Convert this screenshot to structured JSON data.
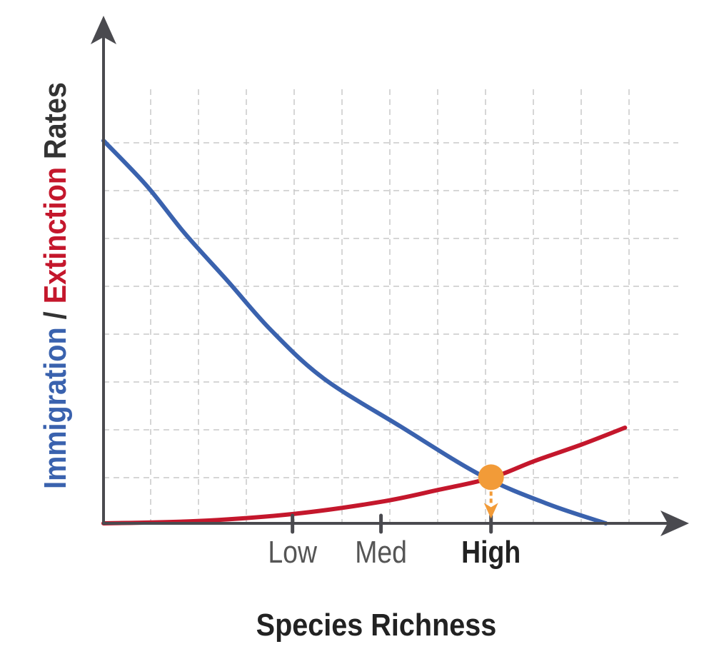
{
  "chart_data": {
    "type": "line",
    "title": "",
    "xlabel": "Species Richness",
    "ylabel_parts": [
      {
        "text": "Immigration",
        "color": "#3a62ae"
      },
      {
        "text": " / ",
        "color": "#333333"
      },
      {
        "text": "Extinction",
        "color": "#c4172c"
      },
      {
        "text": " Rates",
        "color": "#333333"
      }
    ],
    "xlim": [
      0,
      12
    ],
    "ylim": [
      0,
      10
    ],
    "grid": true,
    "x_ticks": [
      {
        "label": "Low",
        "x": 3.95,
        "emphasis": false
      },
      {
        "label": "Med",
        "x": 5.8,
        "emphasis": false
      },
      {
        "label": "High",
        "x": 8.1,
        "emphasis": true
      }
    ],
    "series": [
      {
        "name": "Immigration",
        "color": "#3a62ae",
        "points": [
          [
            0,
            8
          ],
          [
            0.9,
            7.06
          ],
          [
            1.7,
            6.06
          ],
          [
            2.6,
            5.06
          ],
          [
            3.5,
            4.04
          ],
          [
            4.6,
            3.03
          ],
          [
            6.2,
            2.03
          ],
          [
            7.9,
            1.0
          ],
          [
            9.3,
            0.4
          ],
          [
            10.5,
            0
          ]
        ]
      },
      {
        "name": "Extinction",
        "color": "#c4172c",
        "points": [
          [
            0,
            0
          ],
          [
            2,
            0.05
          ],
          [
            4,
            0.2
          ],
          [
            5.8,
            0.45
          ],
          [
            7,
            0.7
          ],
          [
            8.1,
            0.95
          ],
          [
            9,
            1.3
          ],
          [
            10,
            1.65
          ],
          [
            10.9,
            2
          ]
        ]
      }
    ],
    "equilibrium": {
      "x": 8.1,
      "y": 0.95,
      "color": "#f29b38"
    },
    "axis_color": "#4a4a4f",
    "grid_color": "#c8c8c8"
  }
}
